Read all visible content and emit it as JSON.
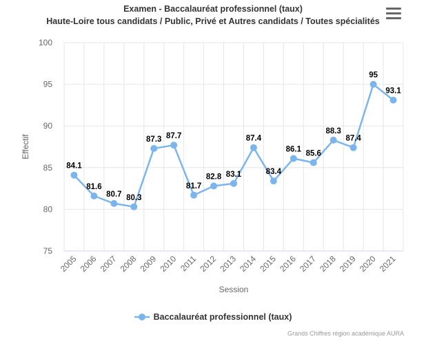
{
  "title": "Examen - Baccalauréat professionnel (taux)",
  "subtitle": "Haute-Loire tous candidats / Public, Privé et Autres candidats / Toutes spécialités",
  "menu_icon": "hamburger-menu-icon",
  "colors": {
    "series": "#7cb5ec",
    "grid": "#e6e6e6",
    "axis_line": "#ccd6eb"
  },
  "credits": "Grands Chiffres région académique AURA",
  "chart_data": {
    "type": "line",
    "title": "Examen - Baccalauréat professionnel (taux)",
    "subtitle": "Haute-Loire tous candidats / Public, Privé et Autres candidats / Toutes spécialités",
    "xlabel": "Session",
    "ylabel": "Effectif",
    "categories": [
      "2005",
      "2006",
      "2007",
      "2008",
      "2009",
      "2010",
      "2011",
      "2012",
      "2013",
      "2014",
      "2015",
      "2016",
      "2017",
      "2018",
      "2019",
      "2020",
      "2021"
    ],
    "ylim": [
      75,
      100
    ],
    "yticks": [
      75,
      80,
      85,
      90,
      95,
      100
    ],
    "grid": true,
    "legend_position": "bottom",
    "series": [
      {
        "name": "Baccalauréat professionnel (taux)",
        "values": [
          84.1,
          81.6,
          80.7,
          80.3,
          87.3,
          87.7,
          81.7,
          82.8,
          83.1,
          87.4,
          83.4,
          86.1,
          85.6,
          88.3,
          87.4,
          95,
          93.1
        ]
      }
    ]
  }
}
